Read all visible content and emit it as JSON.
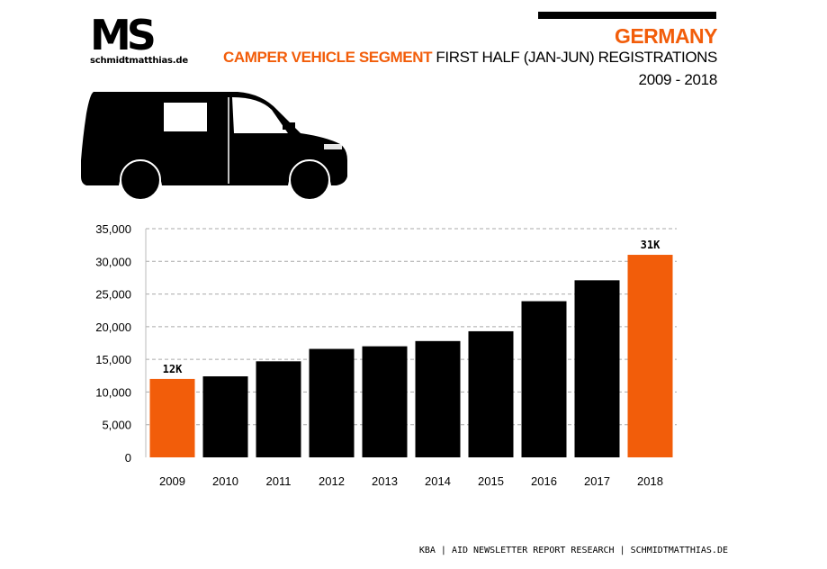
{
  "brand": {
    "logo_text": "MS",
    "site": "schmidtmatthias.de",
    "logo_icon": "ms-logo-icon"
  },
  "header": {
    "country": "GERMANY",
    "subtitle_highlight": "CAMPER VEHICLE SEGMENT",
    "subtitle_rest": " FIRST HALF (JAN-JUN) REGISTRATIONS",
    "years": "2009 - 2018"
  },
  "illustration": {
    "icon": "camper-van-icon"
  },
  "colors": {
    "accent": "#f25d0a",
    "bar": "#000000",
    "grid": "#aaaaaa"
  },
  "chart_data": {
    "type": "bar",
    "title": "",
    "xlabel": "",
    "ylabel": "",
    "categories": [
      "2009",
      "2010",
      "2011",
      "2012",
      "2013",
      "2014",
      "2015",
      "2016",
      "2017",
      "2018"
    ],
    "values": [
      12000,
      12400,
      14700,
      16600,
      17000,
      17800,
      19300,
      23900,
      27100,
      31000
    ],
    "highlighted": [
      "2009",
      "2018"
    ],
    "data_labels": [
      {
        "category": "2009",
        "text": "12K"
      },
      {
        "category": "2018",
        "text": "31K"
      }
    ],
    "ylim": [
      0,
      35000
    ],
    "yticks": [
      0,
      5000,
      10000,
      15000,
      20000,
      25000,
      30000,
      35000
    ],
    "ytick_labels": [
      "0",
      "5,000",
      "10,000",
      "15,000",
      "20,000",
      "25,000",
      "30,000",
      "35,000"
    ],
    "grid": true,
    "grid_style": "dashed"
  },
  "footer": {
    "source": "KBA | AID NEWSLETTER REPORT RESEARCH | SCHMIDTMATTHIAS.DE"
  }
}
